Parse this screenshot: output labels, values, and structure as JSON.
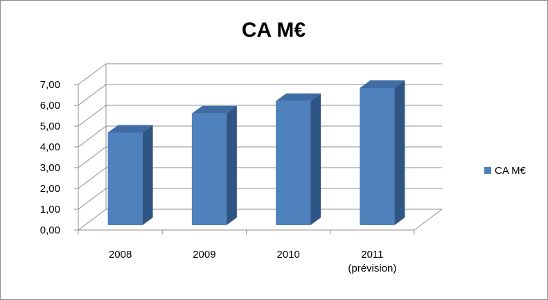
{
  "chart_data": {
    "type": "bar",
    "title": "CA M€",
    "categories": [
      [
        "2008"
      ],
      [
        "2009"
      ],
      [
        "2010"
      ],
      [
        "2011",
        "(prévision)"
      ]
    ],
    "series": [
      {
        "name": "CA M€",
        "values": [
          4.45,
          5.37,
          5.97,
          6.6
        ]
      }
    ],
    "ylim": [
      0,
      7
    ],
    "yticks": [
      "0,00",
      "1,00",
      "2,00",
      "3,00",
      "4,00",
      "5,00",
      "6,00",
      "7,00"
    ],
    "grid": true,
    "legend": "right",
    "colors": {
      "bar_front": "#4f81bd",
      "bar_side": "#2f5584",
      "bar_top": "#3f6ca5",
      "grid": "#8c8c8c"
    }
  }
}
